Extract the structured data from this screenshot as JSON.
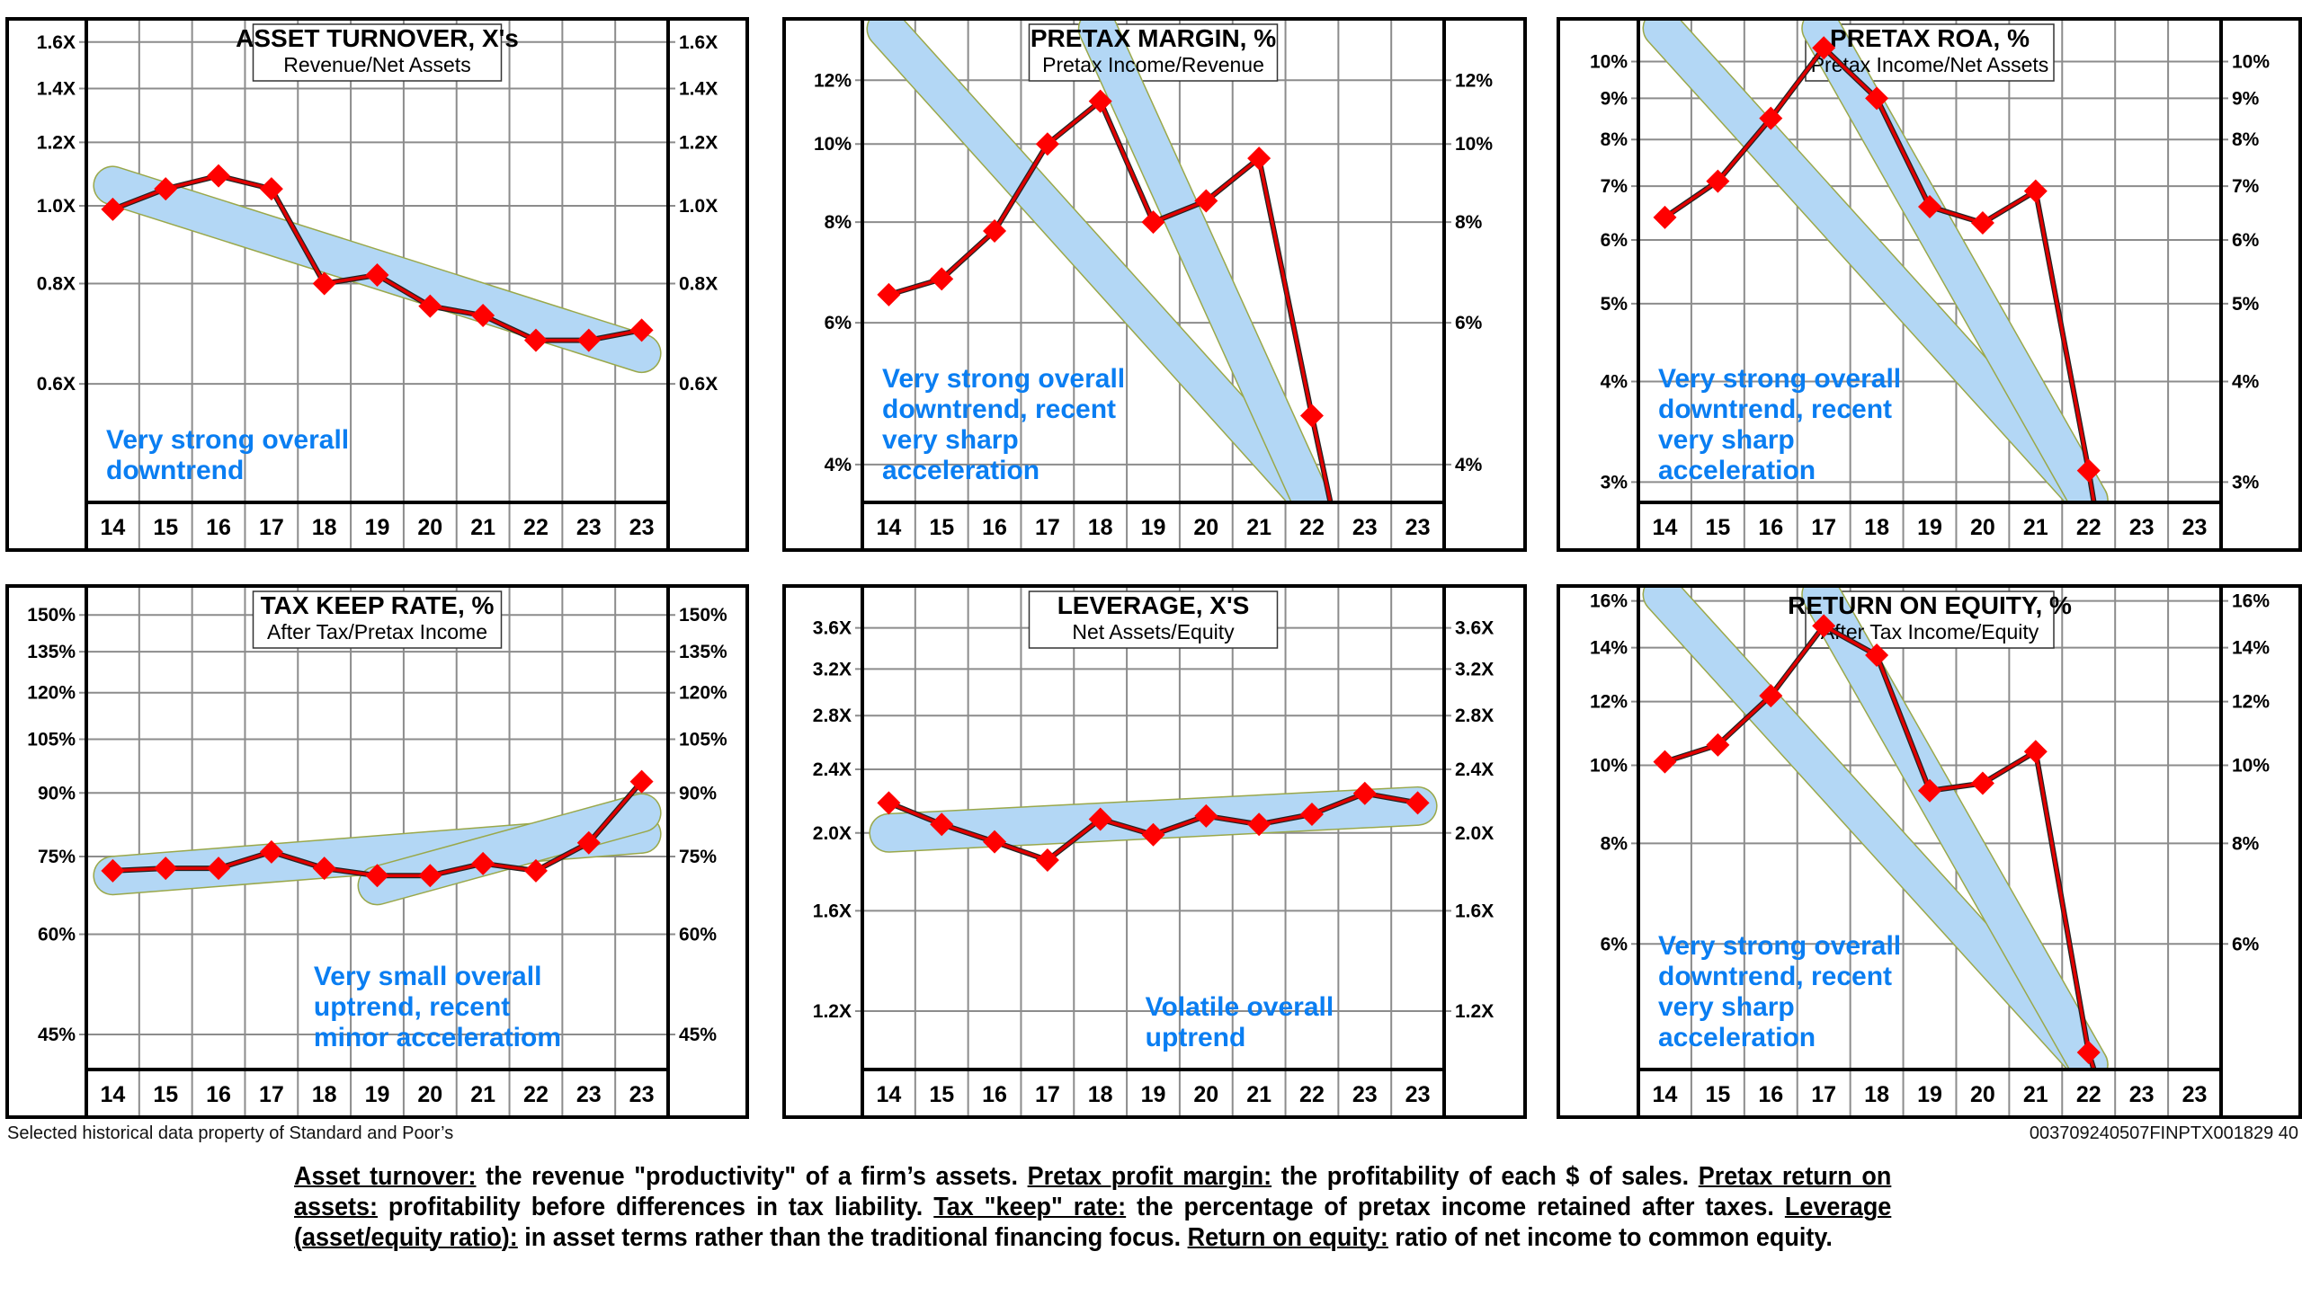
{
  "colors": {
    "line": "#e00000",
    "marker": "#ff0000",
    "band_fill": "#b3d7f5",
    "band_stroke": "#9aa84a",
    "annotation": "#0a7ef2",
    "grid": "#8c8c8c"
  },
  "chart_data": [
    {
      "type": "line",
      "title": "ASSET TURNOVER, X's",
      "subtitle": "Revenue/Net Assets",
      "scale": "log",
      "categories": [
        "14",
        "15",
        "16",
        "17",
        "18",
        "19",
        "20",
        "21",
        "22",
        "23",
        "23"
      ],
      "ylim": [
        0.427,
        1.71
      ],
      "yticks": [
        1.6,
        1.4,
        1.2,
        1.0,
        0.8,
        0.6
      ],
      "ytick_labels": [
        "1.6X",
        "1.4X",
        "1.2X",
        "1.0X",
        "0.8X",
        "0.6X"
      ],
      "series": [
        {
          "name": "Asset Turnover",
          "values": [
            0.99,
            1.05,
            1.09,
            1.05,
            0.8,
            0.82,
            0.75,
            0.73,
            0.68,
            0.68,
            0.7
          ]
        }
      ],
      "trend_bands": [
        {
          "from": [
            0,
            1.06
          ],
          "to": [
            10,
            0.655
          ]
        }
      ],
      "annotation": [
        "Very strong overall",
        "downtrend"
      ],
      "annotation_pos": "bottom-left"
    },
    {
      "type": "line",
      "title": "PRETAX MARGIN, %",
      "subtitle": "Pretax Income/Revenue",
      "scale": "log",
      "categories": [
        "14",
        "15",
        "16",
        "17",
        "18",
        "19",
        "20",
        "21",
        "22",
        "23",
        "23"
      ],
      "ylim": [
        3.59,
        14.3
      ],
      "yticks": [
        12,
        10,
        8,
        6,
        4
      ],
      "ytick_labels": [
        "12%",
        "10%",
        "8%",
        "6%",
        "4%"
      ],
      "series": [
        {
          "name": "Pretax Margin",
          "values": [
            6.5,
            6.8,
            7.8,
            10.0,
            11.3,
            8.0,
            8.5,
            9.6,
            4.6
          ],
          "tail": [
            8.35,
            3.59
          ]
        }
      ],
      "trend_bands": [
        {
          "from": [
            -0.05,
            13.9
          ],
          "to": [
            8.0,
            3.6
          ]
        },
        {
          "from": [
            3.95,
            13.9
          ],
          "to": [
            8.0,
            3.6
          ]
        }
      ],
      "annotation": [
        "Very strong overall",
        "downtrend, recent",
        "very sharp",
        "acceleration"
      ],
      "annotation_pos": "bottom-left"
    },
    {
      "type": "line",
      "title": "PRETAX ROA, %",
      "subtitle": "Pretax Income/Net Assets",
      "scale": "log",
      "categories": [
        "14",
        "15",
        "16",
        "17",
        "18",
        "19",
        "20",
        "21",
        "22",
        "23",
        "23"
      ],
      "ylim": [
        2.83,
        11.3
      ],
      "yticks": [
        10,
        9,
        8,
        7,
        6,
        5,
        4,
        3
      ],
      "ytick_labels": [
        "10%",
        "9%",
        "8%",
        "7%",
        "6%",
        "5%",
        "4%",
        "3%"
      ],
      "series": [
        {
          "name": "Pretax ROA",
          "values": [
            6.4,
            7.1,
            8.5,
            10.4,
            9.0,
            6.6,
            6.3,
            6.9,
            3.1
          ],
          "tail": [
            8.1,
            2.83
          ]
        }
      ],
      "trend_bands": [
        {
          "from": [
            -0.05,
            11.0
          ],
          "to": [
            8.0,
            2.85
          ]
        },
        {
          "from": [
            2.95,
            11.0
          ],
          "to": [
            8.0,
            2.85
          ]
        }
      ],
      "annotation": [
        "Very strong overall",
        "downtrend, recent",
        "very sharp",
        "acceleration"
      ],
      "annotation_pos": "bottom-left"
    },
    {
      "type": "line",
      "title": "TAX KEEP RATE, %",
      "subtitle": "After Tax/Pretax Income",
      "scale": "log",
      "categories": [
        "14",
        "15",
        "16",
        "17",
        "18",
        "19",
        "20",
        "21",
        "22",
        "23",
        "23"
      ],
      "ylim": [
        40.7,
        163
      ],
      "yticks": [
        150,
        135,
        120,
        105,
        90,
        75,
        60,
        45
      ],
      "ytick_labels": [
        "150%",
        "135%",
        "120%",
        "105%",
        "90%",
        "75%",
        "60%",
        "45%"
      ],
      "series": [
        {
          "name": "Tax Keep Rate",
          "values": [
            72,
            72.5,
            72.5,
            76,
            72.5,
            71,
            71,
            73.5,
            72,
            78,
            93
          ]
        }
      ],
      "trend_bands": [
        {
          "from": [
            0,
            71
          ],
          "to": [
            10,
            80
          ]
        },
        {
          "from": [
            5,
            69
          ],
          "to": [
            10,
            85
          ]
        }
      ],
      "annotation": [
        "Very small overall",
        "uptrend, recent",
        "minor acceleratiom"
      ],
      "annotation_pos": "bottom-right"
    },
    {
      "type": "line",
      "title": "LEVERAGE, X'S",
      "subtitle": "Net Assets/Equity",
      "scale": "log",
      "categories": [
        "14",
        "15",
        "16",
        "17",
        "18",
        "19",
        "20",
        "21",
        "22",
        "23",
        "23"
      ],
      "ylim": [
        1.015,
        4.06
      ],
      "yticks": [
        3.6,
        3.2,
        2.8,
        2.4,
        2.0,
        1.6,
        1.2
      ],
      "ytick_labels": [
        "3.6X",
        "3.2X",
        "2.8X",
        "2.4X",
        "2.0X",
        "1.6X",
        "1.2X"
      ],
      "series": [
        {
          "name": "Leverage",
          "values": [
            2.18,
            2.05,
            1.95,
            1.85,
            2.08,
            1.99,
            2.1,
            2.05,
            2.11,
            2.24,
            2.18
          ]
        }
      ],
      "trend_bands": [
        {
          "from": [
            0,
            2.0
          ],
          "to": [
            10,
            2.16
          ]
        }
      ],
      "annotation": [
        "Volatile overall",
        "uptrend"
      ],
      "annotation_pos": "bottom-center"
    },
    {
      "type": "line",
      "title": "RETURN ON EQUITY, %",
      "subtitle": "After Tax Income/Equity",
      "scale": "log",
      "categories": [
        "14",
        "15",
        "16",
        "17",
        "18",
        "19",
        "20",
        "21",
        "22",
        "23",
        "23"
      ],
      "ylim": [
        4.19,
        16.7
      ],
      "yticks": [
        16,
        14,
        12,
        10,
        8,
        6
      ],
      "ytick_labels": [
        "16%",
        "14%",
        "12%",
        "10%",
        "8%",
        "6%"
      ],
      "series": [
        {
          "name": "Return on Equity",
          "values": [
            10.1,
            10.6,
            12.2,
            14.9,
            13.7,
            9.3,
            9.5,
            10.4,
            4.4
          ],
          "tail": [
            8.1,
            4.19
          ]
        }
      ],
      "trend_bands": [
        {
          "from": [
            -0.05,
            16.3
          ],
          "to": [
            8.0,
            4.25
          ]
        },
        {
          "from": [
            2.95,
            16.3
          ],
          "to": [
            8.0,
            4.25
          ]
        }
      ],
      "annotation": [
        "Very strong overall",
        "downtrend, recent",
        "very sharp",
        "acceleration"
      ],
      "annotation_pos": "bottom-left"
    }
  ],
  "footer": {
    "source": "Selected historical data property of Standard and Poor’s",
    "doc_id": "003709240507FINPTX001829  40",
    "definitions": [
      {
        "term": "Asset turnover:",
        "text": " the revenue \"productivity\" of a firm’s assets. "
      },
      {
        "term": "Pretax profit margin:",
        "text": " the profitability of each $ of sales. "
      },
      {
        "term": "Pretax return on assets:",
        "text": " profitability before differences in tax liability. "
      },
      {
        "term": "Tax \"keep\" rate:",
        "text": " the percentage of pretax income retained after taxes. "
      },
      {
        "term": "Leverage (asset/equity ratio):",
        "text": " in asset terms rather than the traditional financing focus. "
      },
      {
        "term": "Return on equity:",
        "text": " ratio of net income to common equity."
      }
    ]
  }
}
